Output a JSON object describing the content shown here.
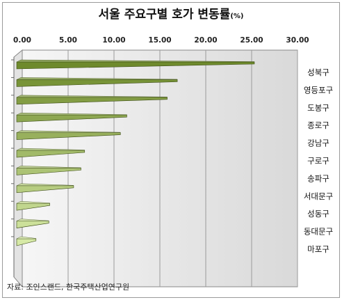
{
  "title": "서울 주요구별 호가 변동률",
  "title_unit": "(%)",
  "source": "자료: 조인스랜드, 한국주택산업연구원",
  "chart_data": {
    "type": "bar",
    "orientation": "horizontal",
    "style": "3d",
    "title": "서울 주요구별 호가 변동률",
    "unit": "(%)",
    "categories": [
      "성북구",
      "영등포구",
      "도봉구",
      "종로구",
      "강남구",
      "구로구",
      "송파구",
      "서대문구",
      "성동구",
      "동대문구",
      "마포구"
    ],
    "values": [
      25.3,
      16.9,
      15.8,
      11.4,
      10.7,
      6.8,
      6.4,
      5.6,
      3.0,
      2.9,
      1.5
    ],
    "xlim": [
      0,
      30
    ],
    "x_ticks": [
      "0.00",
      "5.00",
      "10.00",
      "15.00",
      "20.00",
      "25.00",
      "30.00"
    ],
    "grid": true,
    "legend": "none",
    "colors": {
      "bar_dark": "#6e8a2c",
      "bar_light": "#d6e9a6"
    }
  }
}
